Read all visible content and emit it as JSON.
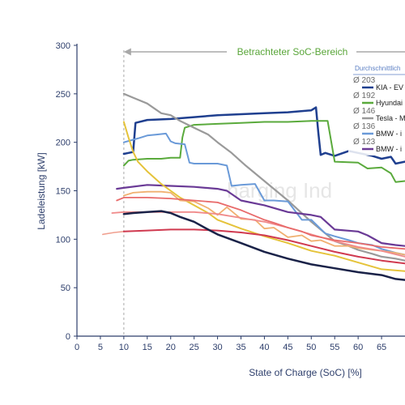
{
  "chart_data": {
    "type": "line",
    "title": "",
    "xlabel": "State of Charge (SoC) [%]",
    "ylabel": "Ladeleistung [kW]",
    "xlim": [
      0,
      70
    ],
    "ylim": [
      0,
      300
    ],
    "xticks": [
      0,
      5,
      10,
      15,
      20,
      25,
      30,
      35,
      40,
      45,
      50,
      55,
      60,
      65
    ],
    "yticks": [
      0,
      50,
      100,
      150,
      200,
      250,
      300
    ],
    "grid": false,
    "region_label": "Betrachteter SoC-Bereich",
    "region_start_x": 10,
    "watermark": "harging Ind",
    "legend": {
      "title": "Durchschnittlich",
      "placement": "top-right",
      "entries": [
        {
          "avg": "Ø 203",
          "name": "KIA - EV",
          "color": "#1f3f8f"
        },
        {
          "avg": "Ø 192",
          "name": "Hyundai",
          "color": "#5aaa3c"
        },
        {
          "avg": "Ø 146",
          "name": "Tesla - M",
          "color": "#9a9a9a"
        },
        {
          "avg": "Ø 136",
          "name": "BMW - i",
          "color": "#6a9ad8"
        },
        {
          "avg": "Ø 123",
          "name": "BMW - i",
          "color": "#6a3a96"
        }
      ]
    },
    "series": [
      {
        "color": "#1f3f8f",
        "width": 2.5,
        "x": [
          10,
          11,
          12,
          12.5,
          15,
          20,
          25,
          30,
          35,
          40,
          45,
          50,
          51,
          51.5,
          52,
          53,
          55,
          58,
          60,
          63,
          65,
          67,
          68,
          70
        ],
        "y": [
          188,
          189,
          190,
          220,
          223,
          224,
          226,
          228,
          229,
          230,
          231,
          233,
          236,
          210,
          187,
          189,
          186,
          191,
          189,
          186,
          183,
          185,
          178,
          180
        ]
      },
      {
        "color": "#5aaa3c",
        "width": 2,
        "x": [
          10,
          11,
          12,
          15,
          18,
          20,
          22,
          22.5,
          23,
          25,
          30,
          35,
          40,
          45,
          50,
          52,
          53.5,
          55,
          60,
          62,
          65,
          67,
          68,
          70
        ],
        "y": [
          176,
          181,
          182,
          183,
          183,
          184,
          184,
          205,
          215,
          218,
          219,
          220,
          221,
          221,
          222,
          222,
          222,
          180,
          179,
          173,
          174,
          168,
          159,
          160
        ]
      },
      {
        "color": "#9a9a9a",
        "width": 2.2,
        "x": [
          10,
          12,
          15,
          18,
          20,
          22,
          25,
          28,
          30,
          33,
          36,
          40,
          45,
          50,
          52,
          55,
          58,
          60,
          63,
          65,
          68,
          70
        ],
        "y": [
          250,
          246,
          240,
          230,
          228,
          222,
          215,
          208,
          200,
          189,
          176,
          160,
          140,
          118,
          110,
          98,
          93,
          89,
          85,
          82,
          80,
          78
        ]
      },
      {
        "color": "#6a9ad8",
        "width": 2,
        "x": [
          10,
          13,
          15,
          17,
          19,
          20,
          21,
          23,
          24,
          25,
          28,
          30,
          32,
          33,
          35,
          38,
          40,
          42,
          45,
          48,
          50,
          53,
          55,
          58,
          60,
          63,
          65,
          68,
          70
        ],
        "y": [
          200,
          204,
          207,
          208,
          209,
          201,
          199,
          198,
          179,
          178,
          178,
          178,
          176,
          155,
          156,
          157,
          140,
          140,
          139,
          120,
          120,
          106,
          103,
          99,
          96,
          94,
          90,
          86,
          84
        ]
      },
      {
        "color": "#6a3a96",
        "width": 2.2,
        "x": [
          8.5,
          10,
          15,
          20,
          25,
          30,
          32,
          35,
          40,
          45,
          50,
          52,
          55,
          60,
          62,
          65,
          68,
          70
        ],
        "y": [
          152,
          153,
          156,
          155,
          154,
          152,
          150,
          140,
          135,
          128,
          125,
          123,
          110,
          108,
          104,
          96,
          94,
          93
        ]
      },
      {
        "color": "#e5c33a",
        "width": 2,
        "x": [
          10,
          11,
          12,
          13,
          15,
          18,
          20,
          22,
          25,
          28,
          30,
          35,
          40,
          45,
          50,
          55,
          60,
          65,
          70
        ],
        "y": [
          221,
          205,
          190,
          180,
          170,
          157,
          150,
          143,
          135,
          127,
          120,
          111,
          103,
          96,
          88,
          83,
          76,
          69,
          67
        ]
      },
      {
        "color": "#f0b070",
        "width": 1.8,
        "x": [
          10,
          12,
          15,
          18,
          20,
          22,
          25,
          28,
          30,
          32,
          35,
          38,
          40,
          42,
          45,
          48,
          50,
          52,
          55,
          58,
          60,
          63,
          65,
          68,
          70
        ],
        "y": [
          145,
          148,
          149,
          149,
          148,
          140,
          139,
          132,
          125,
          133,
          121,
          120,
          111,
          112,
          102,
          104,
          98,
          99,
          93,
          93,
          91,
          89,
          88,
          86,
          84
        ]
      },
      {
        "color": "#f08a8a",
        "width": 1.8,
        "x": [
          7.5,
          10,
          15,
          20,
          25,
          30,
          35,
          40,
          45,
          50,
          55,
          60,
          65,
          70
        ],
        "y": [
          127,
          128,
          128,
          128,
          128,
          126,
          122,
          118,
          112,
          105,
          98,
          92,
          88,
          82
        ]
      },
      {
        "color": "#e86a6a",
        "width": 1.8,
        "x": [
          8.5,
          10,
          15,
          20,
          25,
          30,
          35,
          40,
          42,
          45,
          48,
          50,
          55,
          60,
          65,
          70
        ],
        "y": [
          140,
          143,
          143,
          142,
          140,
          138,
          130,
          120,
          117,
          112,
          108,
          104,
          99,
          96,
          92,
          90
        ]
      },
      {
        "color": "#f0a090",
        "width": 1.6,
        "x": [
          5.5,
          8,
          10
        ],
        "y": [
          105,
          107,
          108
        ]
      },
      {
        "color": "#d03a50",
        "width": 2,
        "x": [
          10,
          15,
          20,
          25,
          30,
          35,
          40,
          45,
          50,
          55,
          60,
          65,
          70
        ],
        "y": [
          108,
          109,
          110,
          110,
          109,
          107,
          104,
          99,
          93,
          87,
          82,
          78,
          75
        ]
      },
      {
        "color": "#1a2248",
        "width": 2.5,
        "x": [
          10,
          12,
          15,
          18,
          20,
          22,
          25,
          28,
          30,
          35,
          40,
          45,
          50,
          55,
          60,
          65,
          68,
          70
        ],
        "y": [
          126,
          127,
          128,
          129,
          127,
          123,
          118,
          110,
          105,
          96,
          87,
          80,
          74,
          70,
          66,
          63,
          59,
          58
        ]
      }
    ]
  }
}
